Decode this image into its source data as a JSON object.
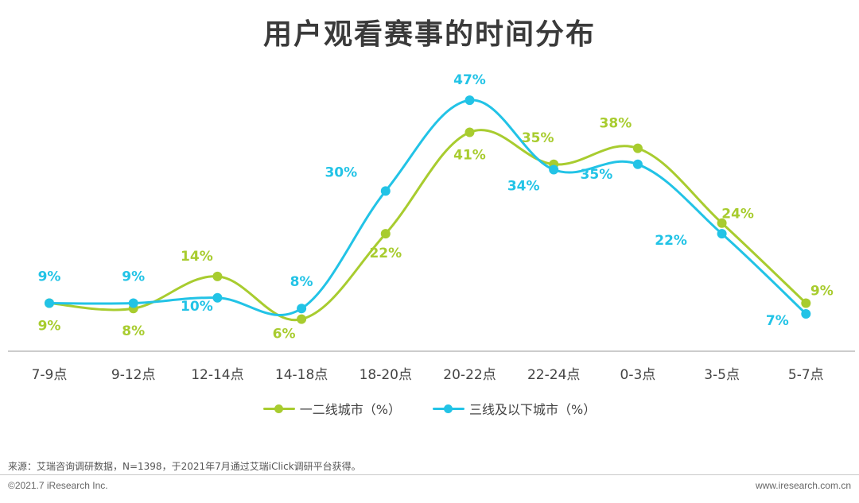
{
  "title": "用户观看赛事的时间分布",
  "source": "来源：艾瑞咨询调研数据，N=1398，于2021年7月通过艾瑞iClick调研平台获得。",
  "footer": {
    "copyright": "©2021.7 iResearch Inc.",
    "website": "www.iresearch.com.cn"
  },
  "colors": {
    "tier12": "#a8cc2f",
    "tier3": "#22c3e6",
    "axis": "#999999"
  },
  "chart_data": {
    "type": "line",
    "categories": [
      "7-9点",
      "9-12点",
      "12-14点",
      "14-18点",
      "18-20点",
      "20-22点",
      "22-24点",
      "0-3点",
      "3-5点",
      "5-7点"
    ],
    "series": [
      {
        "name": "一二线城市（%）",
        "color": "#a8cc2f",
        "values": [
          9,
          8,
          14,
          6,
          22,
          41,
          35,
          38,
          24,
          9
        ],
        "labels": [
          "9%",
          "8%",
          "14%",
          "6%",
          "22%",
          "41%",
          "35%",
          "38%",
          "24%",
          "9%"
        ]
      },
      {
        "name": "三线及以下城市（%）",
        "color": "#22c3e6",
        "values": [
          9,
          9,
          10,
          8,
          30,
          47,
          34,
          35,
          22,
          7
        ],
        "labels": [
          "9%",
          "9%",
          "10%",
          "8%",
          "30%",
          "47%",
          "34%",
          "35%",
          "22%",
          "7%"
        ]
      }
    ],
    "ylim": [
      0,
      50
    ],
    "grid": false,
    "legend": "bottom-center"
  }
}
